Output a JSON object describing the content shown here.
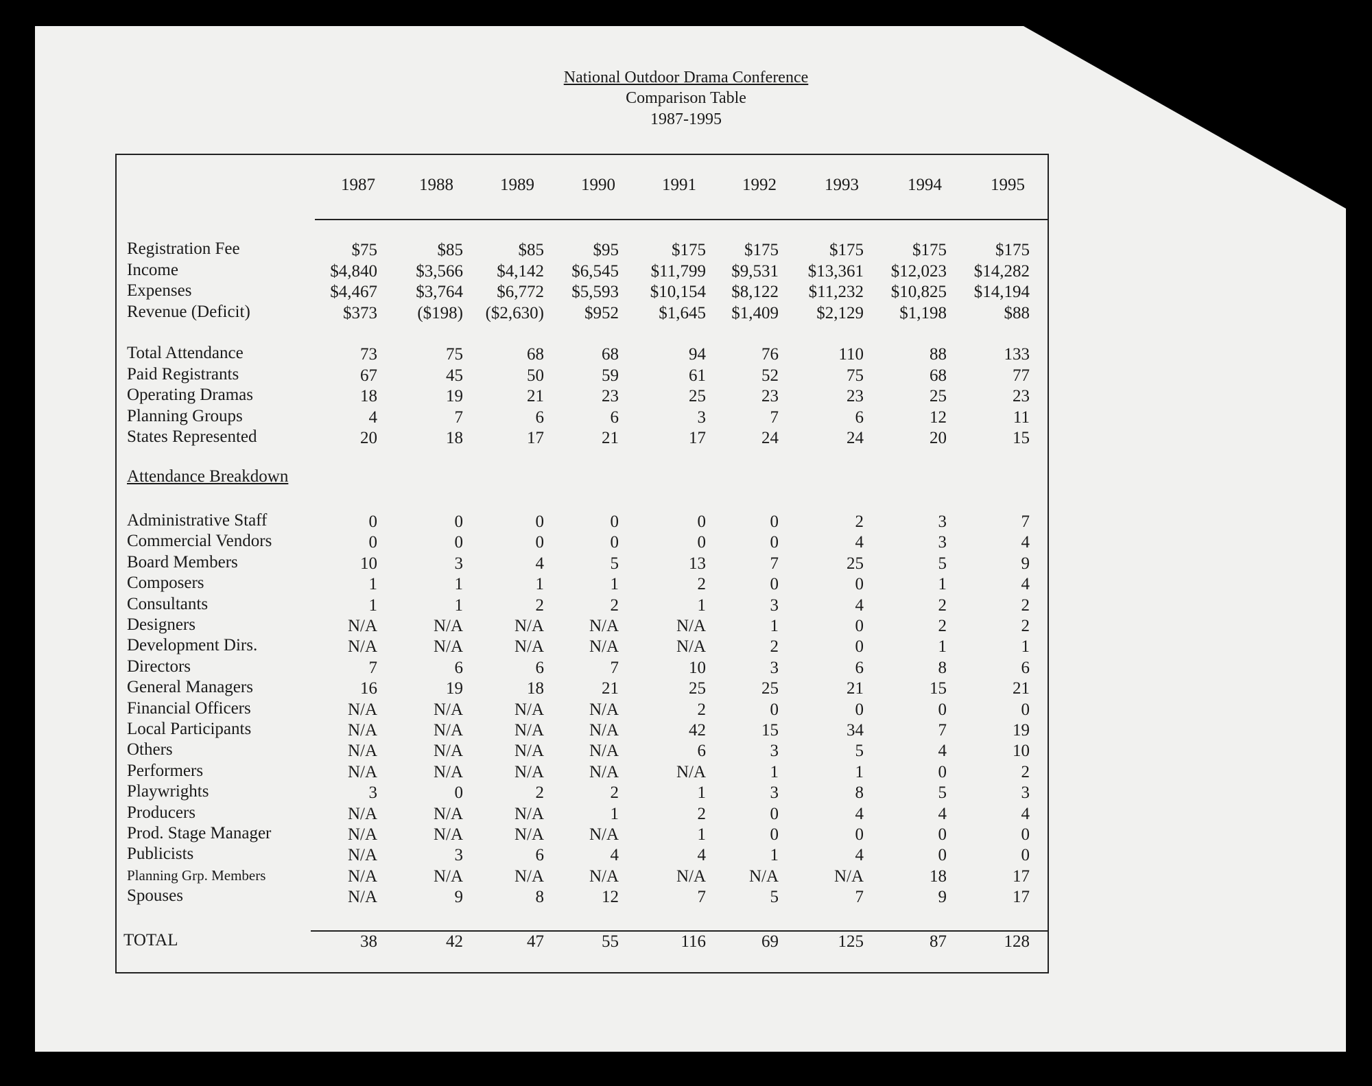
{
  "title": "National Outdoor Drama Conference",
  "subtitle": "Comparison Table",
  "period": "1987-1995",
  "years": [
    "1987",
    "1988",
    "1989",
    "1990",
    "1991",
    "1992",
    "1993",
    "1994",
    "1995"
  ],
  "summary_rows": [
    {
      "label": "Registration Fee",
      "values": [
        "$75",
        "$85",
        "$85",
        "$95",
        "$175",
        "$175",
        "$175",
        "$175",
        "$175"
      ]
    },
    {
      "label": "Income",
      "values": [
        "$4,840",
        "$3,566",
        "$4,142",
        "$6,545",
        "$11,799",
        "$9,531",
        "$13,361",
        "$12,023",
        "$14,282"
      ]
    },
    {
      "label": "Expenses",
      "values": [
        "$4,467",
        "$3,764",
        "$6,772",
        "$5,593",
        "$10,154",
        "$8,122",
        "$11,232",
        "$10,825",
        "$14,194"
      ]
    },
    {
      "label": "Revenue (Deficit)",
      "values": [
        "$373",
        "($198)",
        "($2,630)",
        "$952",
        "$1,645",
        "$1,409",
        "$2,129",
        "$1,198",
        "$88"
      ]
    }
  ],
  "attendance_rows": [
    {
      "label": "Total Attendance",
      "values": [
        "73",
        "75",
        "68",
        "68",
        "94",
        "76",
        "110",
        "88",
        "133"
      ]
    },
    {
      "label": "Paid Registrants",
      "values": [
        "67",
        "45",
        "50",
        "59",
        "61",
        "52",
        "75",
        "68",
        "77"
      ]
    },
    {
      "label": "Operating Dramas",
      "values": [
        "18",
        "19",
        "21",
        "23",
        "25",
        "23",
        "23",
        "25",
        "23"
      ]
    },
    {
      "label": "Planning Groups",
      "values": [
        "4",
        "7",
        "6",
        "6",
        "3",
        "7",
        "6",
        "12",
        "11"
      ]
    },
    {
      "label": "States Represented",
      "values": [
        "20",
        "18",
        "17",
        "21",
        "17",
        "24",
        "24",
        "20",
        "15"
      ]
    }
  ],
  "breakdown_heading": "Attendance Breakdown",
  "breakdown_rows": [
    {
      "label": "Administrative Staff",
      "values": [
        "0",
        "0",
        "0",
        "0",
        "0",
        "0",
        "2",
        "3",
        "7"
      ]
    },
    {
      "label": "Commercial Vendors",
      "values": [
        "0",
        "0",
        "0",
        "0",
        "0",
        "0",
        "4",
        "3",
        "4"
      ]
    },
    {
      "label": "Board Members",
      "values": [
        "10",
        "3",
        "4",
        "5",
        "13",
        "7",
        "25",
        "5",
        "9"
      ]
    },
    {
      "label": "Composers",
      "values": [
        "1",
        "1",
        "1",
        "1",
        "2",
        "0",
        "0",
        "1",
        "4"
      ]
    },
    {
      "label": "Consultants",
      "values": [
        "1",
        "1",
        "2",
        "2",
        "1",
        "3",
        "4",
        "2",
        "2"
      ]
    },
    {
      "label": "Designers",
      "values": [
        "N/A",
        "N/A",
        "N/A",
        "N/A",
        "N/A",
        "1",
        "0",
        "2",
        "2"
      ]
    },
    {
      "label": "Development Dirs.",
      "values": [
        "N/A",
        "N/A",
        "N/A",
        "N/A",
        "N/A",
        "2",
        "0",
        "1",
        "1"
      ]
    },
    {
      "label": "Directors",
      "values": [
        "7",
        "6",
        "6",
        "7",
        "10",
        "3",
        "6",
        "8",
        "6"
      ]
    },
    {
      "label": "General Managers",
      "values": [
        "16",
        "19",
        "18",
        "21",
        "25",
        "25",
        "21",
        "15",
        "21"
      ]
    },
    {
      "label": "Financial Officers",
      "values": [
        "N/A",
        "N/A",
        "N/A",
        "N/A",
        "2",
        "0",
        "0",
        "0",
        "0"
      ]
    },
    {
      "label": "Local Participants",
      "values": [
        "N/A",
        "N/A",
        "N/A",
        "N/A",
        "42",
        "15",
        "34",
        "7",
        "19"
      ]
    },
    {
      "label": "Others",
      "values": [
        "N/A",
        "N/A",
        "N/A",
        "N/A",
        "6",
        "3",
        "5",
        "4",
        "10"
      ]
    },
    {
      "label": "Performers",
      "values": [
        "N/A",
        "N/A",
        "N/A",
        "N/A",
        "N/A",
        "1",
        "1",
        "0",
        "2"
      ]
    },
    {
      "label": "Playwrights",
      "values": [
        "3",
        "0",
        "2",
        "2",
        "1",
        "3",
        "8",
        "5",
        "3"
      ]
    },
    {
      "label": "Producers",
      "values": [
        "N/A",
        "N/A",
        "N/A",
        "1",
        "2",
        "0",
        "4",
        "4",
        "4"
      ]
    },
    {
      "label": "Prod. Stage Manager",
      "values": [
        "N/A",
        "N/A",
        "N/A",
        "N/A",
        "1",
        "0",
        "0",
        "0",
        "0"
      ]
    },
    {
      "label": "Publicists",
      "values": [
        "N/A",
        "3",
        "6",
        "4",
        "4",
        "1",
        "4",
        "0",
        "0"
      ]
    },
    {
      "label": "Planning Grp. Members",
      "values": [
        "N/A",
        "N/A",
        "N/A",
        "N/A",
        "N/A",
        "N/A",
        "N/A",
        "18",
        "17"
      ]
    },
    {
      "label": "Spouses",
      "values": [
        "N/A",
        "9",
        "8",
        "12",
        "7",
        "5",
        "7",
        "9",
        "17"
      ]
    }
  ],
  "total": {
    "label": "TOTAL",
    "values": [
      "38",
      "42",
      "47",
      "55",
      "116",
      "69",
      "125",
      "87",
      "128"
    ]
  }
}
